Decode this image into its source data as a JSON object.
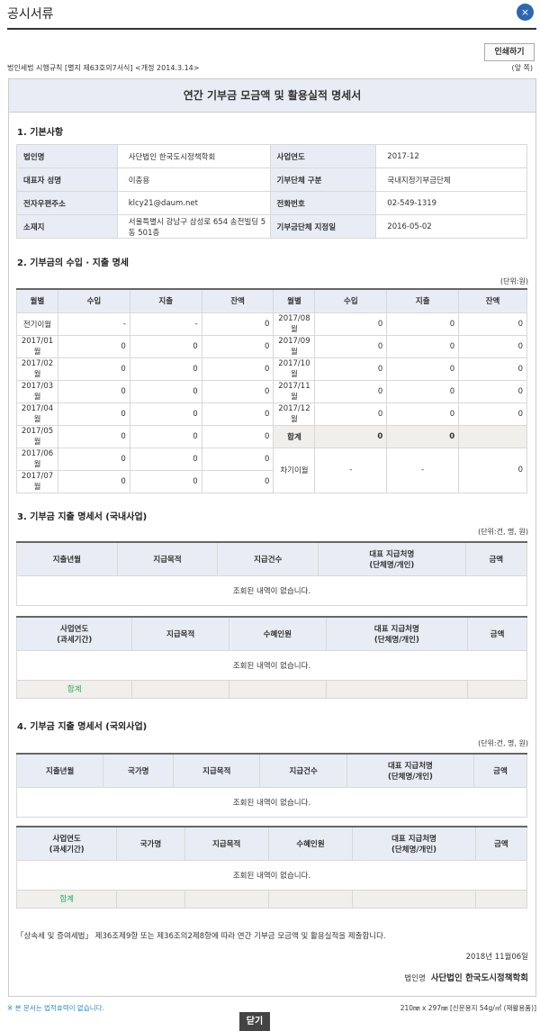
{
  "window": {
    "title": "공시서류",
    "close_icon": "×"
  },
  "print_label": "인쇄하기",
  "form_ref": "법인세법 시행규칙 [별지 제63호의7서식] <개정 2014.3.14>",
  "side": "(앞 쪽)",
  "doc_title": "연간 기부금 모금액 및 활용실적 명세서",
  "s1": {
    "heading": "1. 기본사항",
    "rows": [
      [
        "법인명",
        "사단법인 한국도시정책학회",
        "사업연도",
        "2017-12"
      ],
      [
        "대표자 성명",
        "이충용",
        "기부단체 구분",
        "국내지정기부금단체"
      ],
      [
        "전자우편주소",
        "klcy21@daum.net",
        "전화번호",
        "02-549-1319"
      ],
      [
        "소재지",
        "서울특별시 강남구 삼성로 654 송전빌딩 5동 501층",
        "기부금단체 지정일",
        "2016-05-02"
      ]
    ]
  },
  "s2": {
    "heading": "2. 기부금의 수입 · 지출 명세",
    "unit": "(단위:원)",
    "headers": [
      "월별",
      "수입",
      "지출",
      "잔액",
      "월별",
      "수입",
      "지출",
      "잔액"
    ],
    "left": [
      [
        "전기이월",
        "-",
        "-",
        "0"
      ],
      [
        "2017/01월",
        "0",
        "0",
        "0"
      ],
      [
        "2017/02월",
        "0",
        "0",
        "0"
      ],
      [
        "2017/03월",
        "0",
        "0",
        "0"
      ],
      [
        "2017/04월",
        "0",
        "0",
        "0"
      ],
      [
        "2017/05월",
        "0",
        "0",
        "0"
      ],
      [
        "2017/06월",
        "0",
        "0",
        "0"
      ],
      [
        "2017/07월",
        "0",
        "0",
        "0"
      ]
    ],
    "right": [
      [
        "2017/08월",
        "0",
        "0",
        "0"
      ],
      [
        "2017/09월",
        "0",
        "0",
        "0"
      ],
      [
        "2017/10월",
        "0",
        "0",
        "0"
      ],
      [
        "2017/11월",
        "0",
        "0",
        "0"
      ],
      [
        "2017/12월",
        "0",
        "0",
        "0"
      ],
      [
        "합계",
        "0",
        "0",
        ""
      ],
      [
        "차기이월",
        "-",
        "-",
        "0"
      ]
    ]
  },
  "s3": {
    "heading": "3. 기부금 지출 명세서 (국내사업)",
    "unit": "(단위:건, 명, 원)",
    "h1": [
      "지출년월",
      "지급목적",
      "지급건수",
      "대표 지급처명\n(단체명/개인)",
      "금액"
    ],
    "h2": [
      "사업연도\n(과세기간)",
      "지급목적",
      "수혜인원",
      "대표 지급처명\n(단체명/개인)",
      "금액"
    ],
    "empty": "조회된 내역이 없습니다.",
    "total": "합계"
  },
  "s4": {
    "heading": "4. 기부금 지출 명세서 (국외사업)",
    "unit": "(단위:건, 명, 원)",
    "h1": [
      "지출년월",
      "국가명",
      "지급목적",
      "지급건수",
      "대표 지급처명\n(단체명/개인)",
      "금액"
    ],
    "h2": [
      "사업연도\n(과세기간)",
      "국가명",
      "지급목적",
      "수혜인원",
      "대표 지급처명\n(단체명/개인)",
      "금액"
    ],
    "empty": "조회된 내역이 없습니다.",
    "total": "합계"
  },
  "statement": "「상속세 및 증여세법」 제36조제9항 또는 제36조의2제8항에 따라 연간 기부금 모금액 및 활용실적을 제출합니다.",
  "date": "2018년 11월06일",
  "corp_label": "법인명",
  "corp_name": "사단법인 한국도시정책학회",
  "note": "※ 본 문서는 법적효력이 없습니다.",
  "paper": "210㎜ x 297㎜ [신문용지 54g/㎡ (재활용품)]",
  "close_label": "닫기"
}
